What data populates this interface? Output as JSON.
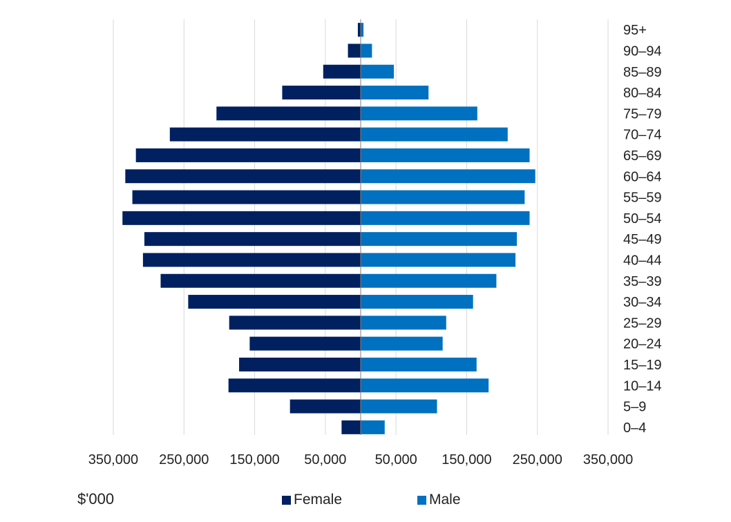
{
  "chart_data": {
    "type": "bar",
    "orientation": "horizontal",
    "layout": "population-pyramid",
    "categories": [
      "95+",
      "90–94",
      "85–89",
      "80–84",
      "75–79",
      "70–74",
      "65–69",
      "60–64",
      "55–59",
      "50–54",
      "45–49",
      "40–44",
      "35–39",
      "30–34",
      "25–29",
      "20–24",
      "15–19",
      "10–14",
      "5–9",
      "0–4"
    ],
    "series": [
      {
        "name": "Female",
        "side": "left",
        "color": "#002060",
        "values": [
          4,
          18,
          53,
          111,
          204,
          270,
          318,
          333,
          323,
          337,
          306,
          308,
          283,
          244,
          186,
          157,
          172,
          187,
          100,
          27
        ]
      },
      {
        "name": "Male",
        "side": "right",
        "color": "#0070C0",
        "values": [
          4,
          16,
          47,
          96,
          165,
          208,
          239,
          247,
          232,
          239,
          221,
          219,
          192,
          159,
          121,
          116,
          164,
          181,
          108,
          34
        ]
      }
    ],
    "value_units": "thousands",
    "xlim": [
      -350000,
      350000
    ],
    "x_ticks": [
      -350000,
      -250000,
      -150000,
      -50000,
      50000,
      150000,
      250000,
      350000
    ],
    "x_tick_labels": [
      "350,000",
      "250,000",
      "150,000",
      "50,000",
      "50,000",
      "150,000",
      "250,000",
      "350,000"
    ],
    "xlabel": "$'000",
    "ylabel": "",
    "grid": "vertical",
    "legend": "bottom"
  }
}
